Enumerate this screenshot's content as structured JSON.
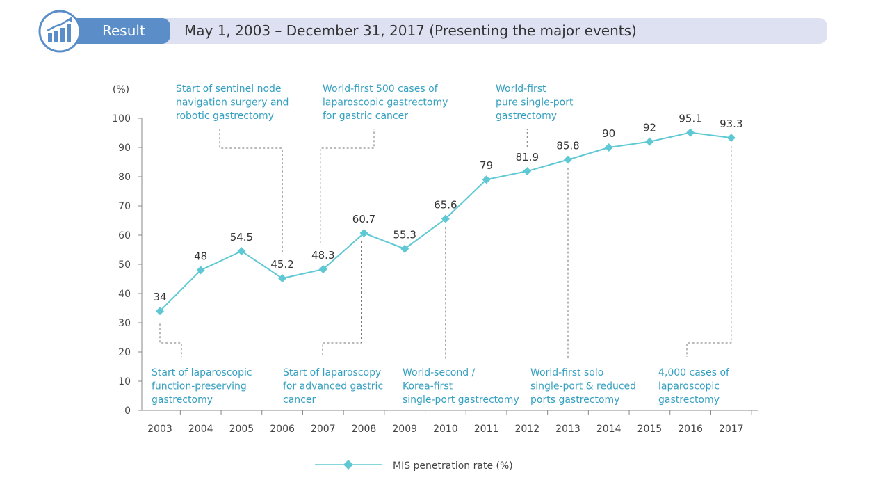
{
  "header": {
    "tag": "Result",
    "title": "May 1, 2003 – December 31, 2017  (Presenting the major events)",
    "icon": "rising-chart-icon"
  },
  "chart_data": {
    "type": "line",
    "ylabel": "(%)",
    "ylim": [
      0,
      100
    ],
    "yticks": [
      0,
      10,
      20,
      30,
      40,
      50,
      60,
      70,
      80,
      90,
      100
    ],
    "categories": [
      "2003",
      "2004",
      "2005",
      "2006",
      "2007",
      "2008",
      "2009",
      "2010",
      "2011",
      "2012",
      "2013",
      "2014",
      "2015",
      "2016",
      "2017"
    ],
    "series": [
      {
        "name": "MIS penetration rate (%)",
        "values": [
          34,
          48,
          54.5,
          45.2,
          48.3,
          60.7,
          55.3,
          65.6,
          79,
          81.9,
          85.8,
          90,
          92,
          95.1,
          93.3
        ],
        "color": "#5ec8d4"
      }
    ],
    "data_labels": [
      "34",
      "48",
      "54.5",
      "45.2",
      "48.3",
      "60.7",
      "55.3",
      "65.6",
      "79",
      "81.9",
      "85.8",
      "90",
      "92",
      "95.1",
      "93.3"
    ],
    "legend": {
      "label": "MIS penetration rate (%)",
      "placement": "bottom-center"
    },
    "annotations": [
      {
        "point": "2003",
        "position": "below",
        "lines": [
          "Start of laparoscopic",
          "function-preserving",
          "gastrectomy"
        ]
      },
      {
        "point": "2006",
        "position": "above",
        "lines": [
          "Start of sentinel node",
          "navigation surgery and",
          "robotic gastrectomy"
        ]
      },
      {
        "point": "2007",
        "position": "above",
        "lines": [
          "World-first 500 cases of",
          "laparoscopic gastrectomy",
          "for gastric cancer"
        ]
      },
      {
        "point": "2008",
        "position": "below",
        "lines": [
          "Start of laparoscopy",
          "for advanced gastric",
          "cancer"
        ]
      },
      {
        "point": "2010",
        "position": "below",
        "lines": [
          "World-second /",
          "Korea-first",
          "single-port gastrectomy"
        ]
      },
      {
        "point": "2012",
        "position": "above",
        "lines": [
          "World-first",
          "pure single-port",
          "gastrectomy"
        ]
      },
      {
        "point": "2013",
        "position": "below",
        "lines": [
          "World-first solo",
          "single-port & reduced",
          "ports gastrectomy"
        ]
      },
      {
        "point": "2017",
        "position": "below",
        "lines": [
          "4,000 cases of",
          "laparoscopic",
          "gastrectomy"
        ]
      }
    ]
  }
}
